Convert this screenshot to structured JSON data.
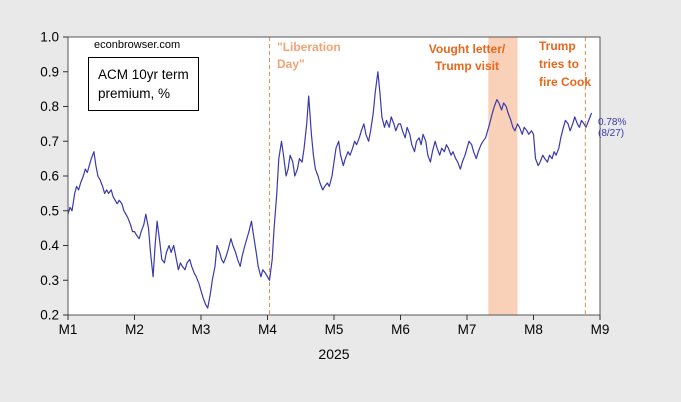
{
  "colors": {
    "background": "#e9e9e9",
    "plot_bg": "#ffffff",
    "line": "#3a3aad",
    "annotation_orange": "#e8671c",
    "annotation_light_orange": "#f2a477",
    "dashed_line": "#ec8c4e",
    "band": "#f8c5a8"
  },
  "watermark": {
    "text": "econbrowser.com"
  },
  "legend": {
    "lines": [
      "ACM 10yr term",
      "premium, %"
    ]
  },
  "annotations": {
    "liberation_day": {
      "lines": [
        "\"Liberation",
        "Day\""
      ],
      "color": "#f2a477"
    },
    "vought": {
      "lines": [
        "Vought letter/",
        "Trump visit"
      ],
      "color": "#e8671c"
    },
    "fire_cook": {
      "lines": [
        "Trump",
        "tries to",
        "fire Cook"
      ],
      "color": "#e8671c"
    },
    "last_value": {
      "lines": [
        "0.78%",
        "(8/27)"
      ],
      "color": "#3a3aad"
    }
  },
  "chart_data": {
    "type": "line",
    "title": "ACM 10yr term premium, %",
    "xlabel": "2025",
    "ylabel": "",
    "xlim": [
      1,
      9
    ],
    "ylim": [
      0.2,
      1.0
    ],
    "grid": false,
    "legend_position": "top-left",
    "x_ticks": [
      {
        "v": 1,
        "label": "M1"
      },
      {
        "v": 2,
        "label": "M2"
      },
      {
        "v": 3,
        "label": "M3"
      },
      {
        "v": 4,
        "label": "M4"
      },
      {
        "v": 5,
        "label": "M5"
      },
      {
        "v": 6,
        "label": "M6"
      },
      {
        "v": 7,
        "label": "M7"
      },
      {
        "v": 8,
        "label": "M8"
      },
      {
        "v": 9,
        "label": "M9"
      }
    ],
    "y_ticks": [
      {
        "v": 1.0,
        "label": "1.0"
      },
      {
        "v": 0.9,
        "label": "0.9"
      },
      {
        "v": 0.8,
        "label": "0.8"
      },
      {
        "v": 0.7,
        "label": "0.7"
      },
      {
        "v": 0.6,
        "label": "0.6"
      },
      {
        "v": 0.5,
        "label": "0.5"
      },
      {
        "v": 0.4,
        "label": "0.4"
      },
      {
        "v": 0.3,
        "label": "0.3"
      },
      {
        "v": 0.2,
        "label": "0.2"
      }
    ],
    "band": {
      "x_start": 7.32,
      "x_end": 7.76,
      "color": "#f8c5a8",
      "opacity": 0.8,
      "label": "Vought letter/ Trump visit"
    },
    "vlines": [
      {
        "x": 4.03,
        "style": "dashed",
        "color": "#ec8c4e",
        "label": "\"Liberation Day\""
      },
      {
        "x": 8.78,
        "style": "dashed",
        "color": "#ec8c4e",
        "label": "Trump tries to fire Cook"
      }
    ],
    "last_point": {
      "x": 8.87,
      "y": 0.78,
      "label": "0.78% (8/27)"
    },
    "series": [
      {
        "name": "ACM 10yr term premium, %",
        "color": "#3a3aad",
        "points": [
          [
            1.0,
            0.49
          ],
          [
            1.03,
            0.51
          ],
          [
            1.06,
            0.5
          ],
          [
            1.1,
            0.55
          ],
          [
            1.13,
            0.57
          ],
          [
            1.16,
            0.56
          ],
          [
            1.19,
            0.58
          ],
          [
            1.23,
            0.6
          ],
          [
            1.26,
            0.62
          ],
          [
            1.29,
            0.61
          ],
          [
            1.32,
            0.63
          ],
          [
            1.35,
            0.65
          ],
          [
            1.39,
            0.67
          ],
          [
            1.42,
            0.63
          ],
          [
            1.45,
            0.6
          ],
          [
            1.48,
            0.59
          ],
          [
            1.52,
            0.57
          ],
          [
            1.55,
            0.55
          ],
          [
            1.58,
            0.56
          ],
          [
            1.61,
            0.55
          ],
          [
            1.65,
            0.56
          ],
          [
            1.68,
            0.54
          ],
          [
            1.71,
            0.53
          ],
          [
            1.74,
            0.52
          ],
          [
            1.77,
            0.53
          ],
          [
            1.81,
            0.52
          ],
          [
            1.84,
            0.5
          ],
          [
            1.87,
            0.49
          ],
          [
            1.9,
            0.48
          ],
          [
            1.94,
            0.46
          ],
          [
            1.97,
            0.44
          ],
          [
            2.0,
            0.44
          ],
          [
            2.03,
            0.43
          ],
          [
            2.07,
            0.42
          ],
          [
            2.1,
            0.44
          ],
          [
            2.14,
            0.46
          ],
          [
            2.17,
            0.49
          ],
          [
            2.21,
            0.45
          ],
          [
            2.24,
            0.38
          ],
          [
            2.28,
            0.31
          ],
          [
            2.31,
            0.4
          ],
          [
            2.34,
            0.47
          ],
          [
            2.38,
            0.41
          ],
          [
            2.41,
            0.36
          ],
          [
            2.45,
            0.35
          ],
          [
            2.48,
            0.38
          ],
          [
            2.52,
            0.4
          ],
          [
            2.55,
            0.38
          ],
          [
            2.59,
            0.4
          ],
          [
            2.62,
            0.37
          ],
          [
            2.66,
            0.33
          ],
          [
            2.69,
            0.35
          ],
          [
            2.72,
            0.34
          ],
          [
            2.76,
            0.33
          ],
          [
            2.79,
            0.35
          ],
          [
            2.83,
            0.36
          ],
          [
            2.86,
            0.34
          ],
          [
            2.9,
            0.32
          ],
          [
            2.93,
            0.31
          ],
          [
            2.97,
            0.29
          ],
          [
            3.0,
            0.27
          ],
          [
            3.03,
            0.25
          ],
          [
            3.07,
            0.23
          ],
          [
            3.1,
            0.22
          ],
          [
            3.14,
            0.26
          ],
          [
            3.17,
            0.3
          ],
          [
            3.21,
            0.34
          ],
          [
            3.24,
            0.4
          ],
          [
            3.28,
            0.38
          ],
          [
            3.31,
            0.36
          ],
          [
            3.34,
            0.35
          ],
          [
            3.38,
            0.37
          ],
          [
            3.41,
            0.39
          ],
          [
            3.45,
            0.42
          ],
          [
            3.48,
            0.4
          ],
          [
            3.52,
            0.38
          ],
          [
            3.55,
            0.36
          ],
          [
            3.59,
            0.34
          ],
          [
            3.62,
            0.37
          ],
          [
            3.66,
            0.4
          ],
          [
            3.69,
            0.42
          ],
          [
            3.72,
            0.44
          ],
          [
            3.76,
            0.47
          ],
          [
            3.79,
            0.43
          ],
          [
            3.83,
            0.38
          ],
          [
            3.86,
            0.34
          ],
          [
            3.9,
            0.31
          ],
          [
            3.93,
            0.33
          ],
          [
            3.97,
            0.32
          ],
          [
            4.0,
            0.31
          ],
          [
            4.03,
            0.3
          ],
          [
            4.07,
            0.36
          ],
          [
            4.1,
            0.45
          ],
          [
            4.14,
            0.55
          ],
          [
            4.17,
            0.65
          ],
          [
            4.21,
            0.7
          ],
          [
            4.24,
            0.66
          ],
          [
            4.28,
            0.6
          ],
          [
            4.31,
            0.62
          ],
          [
            4.34,
            0.66
          ],
          [
            4.38,
            0.64
          ],
          [
            4.41,
            0.6
          ],
          [
            4.45,
            0.62
          ],
          [
            4.48,
            0.65
          ],
          [
            4.52,
            0.64
          ],
          [
            4.55,
            0.68
          ],
          [
            4.59,
            0.75
          ],
          [
            4.62,
            0.83
          ],
          [
            4.66,
            0.72
          ],
          [
            4.69,
            0.66
          ],
          [
            4.72,
            0.62
          ],
          [
            4.76,
            0.6
          ],
          [
            4.79,
            0.58
          ],
          [
            4.83,
            0.56
          ],
          [
            4.86,
            0.57
          ],
          [
            4.9,
            0.58
          ],
          [
            4.93,
            0.57
          ],
          [
            4.97,
            0.6
          ],
          [
            5.0,
            0.64
          ],
          [
            5.03,
            0.68
          ],
          [
            5.07,
            0.7
          ],
          [
            5.1,
            0.66
          ],
          [
            5.14,
            0.63
          ],
          [
            5.17,
            0.65
          ],
          [
            5.21,
            0.67
          ],
          [
            5.24,
            0.66
          ],
          [
            5.28,
            0.68
          ],
          [
            5.31,
            0.7
          ],
          [
            5.34,
            0.69
          ],
          [
            5.38,
            0.71
          ],
          [
            5.41,
            0.73
          ],
          [
            5.45,
            0.75
          ],
          [
            5.48,
            0.72
          ],
          [
            5.52,
            0.7
          ],
          [
            5.55,
            0.73
          ],
          [
            5.59,
            0.78
          ],
          [
            5.62,
            0.84
          ],
          [
            5.66,
            0.9
          ],
          [
            5.69,
            0.84
          ],
          [
            5.72,
            0.77
          ],
          [
            5.76,
            0.74
          ],
          [
            5.79,
            0.76
          ],
          [
            5.83,
            0.74
          ],
          [
            5.86,
            0.77
          ],
          [
            5.9,
            0.75
          ],
          [
            5.93,
            0.73
          ],
          [
            5.97,
            0.75
          ],
          [
            6.0,
            0.75
          ],
          [
            6.03,
            0.73
          ],
          [
            6.07,
            0.71
          ],
          [
            6.1,
            0.74
          ],
          [
            6.14,
            0.72
          ],
          [
            6.17,
            0.69
          ],
          [
            6.21,
            0.67
          ],
          [
            6.24,
            0.7
          ],
          [
            6.28,
            0.71
          ],
          [
            6.31,
            0.69
          ],
          [
            6.34,
            0.72
          ],
          [
            6.38,
            0.7
          ],
          [
            6.41,
            0.66
          ],
          [
            6.45,
            0.64
          ],
          [
            6.48,
            0.67
          ],
          [
            6.52,
            0.7
          ],
          [
            6.55,
            0.68
          ],
          [
            6.59,
            0.66
          ],
          [
            6.62,
            0.68
          ],
          [
            6.66,
            0.67
          ],
          [
            6.69,
            0.69
          ],
          [
            6.72,
            0.68
          ],
          [
            6.76,
            0.66
          ],
          [
            6.79,
            0.67
          ],
          [
            6.83,
            0.65
          ],
          [
            6.86,
            0.64
          ],
          [
            6.9,
            0.62
          ],
          [
            6.93,
            0.64
          ],
          [
            6.97,
            0.66
          ],
          [
            7.0,
            0.68
          ],
          [
            7.03,
            0.7
          ],
          [
            7.07,
            0.69
          ],
          [
            7.1,
            0.67
          ],
          [
            7.14,
            0.65
          ],
          [
            7.17,
            0.67
          ],
          [
            7.21,
            0.69
          ],
          [
            7.24,
            0.7
          ],
          [
            7.28,
            0.71
          ],
          [
            7.31,
            0.73
          ],
          [
            7.34,
            0.75
          ],
          [
            7.38,
            0.78
          ],
          [
            7.41,
            0.8
          ],
          [
            7.45,
            0.82
          ],
          [
            7.48,
            0.81
          ],
          [
            7.52,
            0.79
          ],
          [
            7.55,
            0.81
          ],
          [
            7.59,
            0.8
          ],
          [
            7.62,
            0.78
          ],
          [
            7.66,
            0.76
          ],
          [
            7.69,
            0.74
          ],
          [
            7.72,
            0.73
          ],
          [
            7.76,
            0.75
          ],
          [
            7.79,
            0.74
          ],
          [
            7.83,
            0.72
          ],
          [
            7.86,
            0.74
          ],
          [
            7.9,
            0.73
          ],
          [
            7.93,
            0.72
          ],
          [
            7.97,
            0.73
          ],
          [
            8.0,
            0.72
          ],
          [
            8.03,
            0.65
          ],
          [
            8.07,
            0.63
          ],
          [
            8.1,
            0.64
          ],
          [
            8.14,
            0.66
          ],
          [
            8.17,
            0.65
          ],
          [
            8.21,
            0.64
          ],
          [
            8.24,
            0.66
          ],
          [
            8.28,
            0.65
          ],
          [
            8.31,
            0.67
          ],
          [
            8.34,
            0.66
          ],
          [
            8.38,
            0.68
          ],
          [
            8.41,
            0.71
          ],
          [
            8.45,
            0.74
          ],
          [
            8.48,
            0.76
          ],
          [
            8.52,
            0.75
          ],
          [
            8.55,
            0.73
          ],
          [
            8.59,
            0.75
          ],
          [
            8.62,
            0.77
          ],
          [
            8.66,
            0.75
          ],
          [
            8.69,
            0.74
          ],
          [
            8.72,
            0.76
          ],
          [
            8.76,
            0.75
          ],
          [
            8.79,
            0.74
          ],
          [
            8.83,
            0.76
          ],
          [
            8.87,
            0.78
          ]
        ]
      }
    ]
  }
}
